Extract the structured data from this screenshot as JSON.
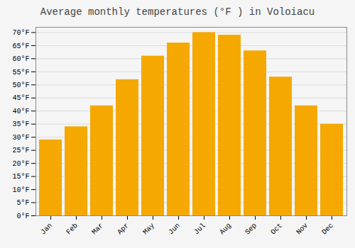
{
  "chart_data": {
    "type": "bar",
    "title": "Average monthly temperatures (°F ) in Voloiacu",
    "categories": [
      "Jan",
      "Feb",
      "Mar",
      "Apr",
      "May",
      "Jun",
      "Jul",
      "Aug",
      "Sep",
      "Oct",
      "Nov",
      "Dec"
    ],
    "values": [
      29,
      34,
      42,
      52,
      61,
      66,
      70,
      69,
      63,
      53,
      42,
      35
    ],
    "color": "#F5A800",
    "ylim": [
      0,
      72
    ],
    "yticks": [
      {
        "value": 0,
        "label": "0°F"
      },
      {
        "value": 5,
        "label": "5°F"
      },
      {
        "value": 10,
        "label": "10°F"
      },
      {
        "value": 15,
        "label": "15°F"
      },
      {
        "value": 20,
        "label": "20°F"
      },
      {
        "value": 25,
        "label": "25°F"
      },
      {
        "value": 30,
        "label": "30°F"
      },
      {
        "value": 35,
        "label": "35°F"
      },
      {
        "value": 40,
        "label": "40°F"
      },
      {
        "value": 45,
        "label": "45°F"
      },
      {
        "value": 50,
        "label": "50°F"
      },
      {
        "value": 55,
        "label": "55°F"
      },
      {
        "value": 60,
        "label": "60°F"
      },
      {
        "value": 65,
        "label": "65°F"
      },
      {
        "value": 70,
        "label": "70°F"
      }
    ],
    "grid": true
  }
}
